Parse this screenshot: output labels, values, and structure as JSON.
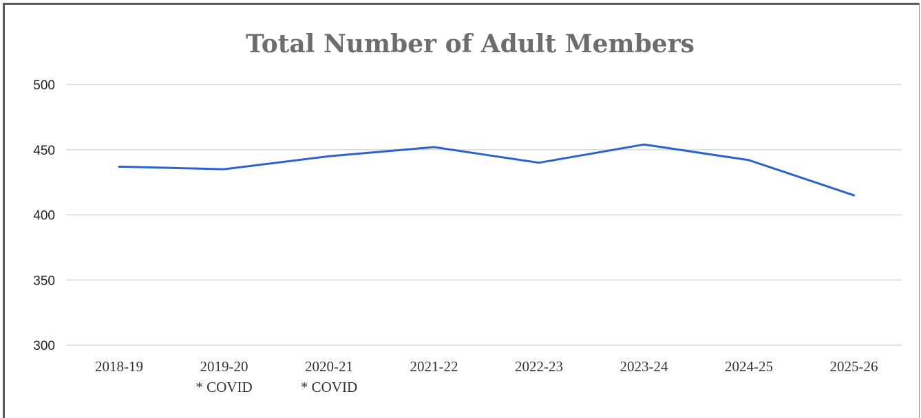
{
  "chart_data": {
    "type": "line",
    "title": "Total Number of Adult Members",
    "xlabel": "",
    "ylabel": "",
    "categories": [
      "2018-19",
      "2019-20",
      "2020-21",
      "2021-22",
      "2022-23",
      "2023-24",
      "2024-25",
      "2025-26"
    ],
    "category_notes": [
      "",
      "* COVID",
      "* COVID",
      "",
      "",
      "",
      "",
      ""
    ],
    "series": [
      {
        "values": [
          437,
          435,
          445,
          452,
          440,
          454,
          442,
          415
        ]
      }
    ],
    "ylim": [
      300,
      500
    ],
    "yticks": [
      500,
      450,
      400,
      350,
      300
    ],
    "grid": true,
    "legend": "none",
    "colors": {
      "line": "#2a62cf",
      "grid": "#d9d9d9",
      "title": "#6d6d6d"
    }
  }
}
